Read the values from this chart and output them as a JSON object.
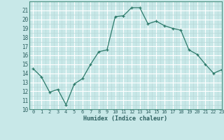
{
  "x": [
    0,
    1,
    2,
    3,
    4,
    5,
    6,
    7,
    8,
    9,
    10,
    11,
    12,
    13,
    14,
    15,
    16,
    17,
    18,
    19,
    20,
    21,
    22,
    23
  ],
  "y": [
    14.5,
    13.6,
    11.9,
    12.2,
    10.5,
    12.8,
    13.4,
    15.0,
    16.4,
    16.6,
    20.3,
    20.4,
    21.3,
    21.3,
    19.5,
    19.8,
    19.3,
    19.0,
    18.8,
    16.6,
    16.1,
    15.0,
    14.0,
    14.4
  ],
  "xlabel": "Humidex (Indice chaleur)",
  "ylim": [
    10,
    22
  ],
  "xlim": [
    -0.5,
    23
  ],
  "yticks": [
    10,
    11,
    12,
    13,
    14,
    15,
    16,
    17,
    18,
    19,
    20,
    21
  ],
  "xticks": [
    0,
    1,
    2,
    3,
    4,
    5,
    6,
    7,
    8,
    9,
    10,
    11,
    12,
    13,
    14,
    15,
    16,
    17,
    18,
    19,
    20,
    21,
    22,
    23
  ],
  "xtick_labels": [
    "0",
    "1",
    "2",
    "3",
    "4",
    "5",
    "6",
    "7",
    "8",
    "9",
    "10",
    "11",
    "12",
    "13",
    "14",
    "15",
    "16",
    "17",
    "18",
    "19",
    "20",
    "21",
    "22",
    "23"
  ],
  "line_color": "#2d7a6a",
  "marker": "+",
  "bg_color": "#c8e8e8",
  "grid_major_color": "#ffffff",
  "grid_minor_color": "#b8d8d8",
  "spine_color": "#4a9080",
  "tick_label_color": "#2d6060",
  "xlabel_color": "#2d6060"
}
